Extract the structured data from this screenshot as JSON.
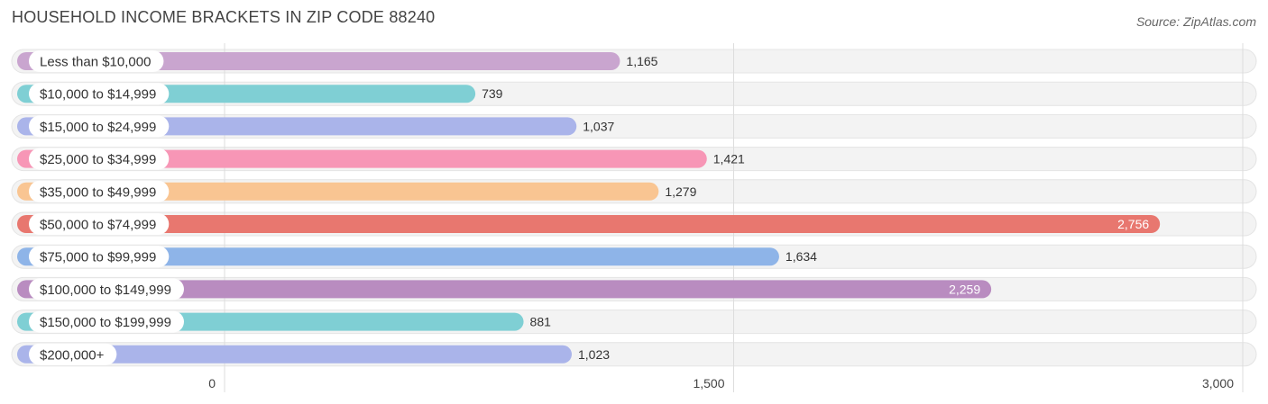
{
  "header": {
    "title": "HOUSEHOLD INCOME BRACKETS IN ZIP CODE 88240",
    "source": "Source: ZipAtlas.com"
  },
  "chart_data": {
    "type": "bar",
    "orientation": "horizontal",
    "title": "HOUSEHOLD INCOME BRACKETS IN ZIP CODE 88240",
    "xlabel": "",
    "ylabel": "",
    "xlim": [
      0,
      3000
    ],
    "ticks": [
      0,
      1500,
      3000
    ],
    "tick_labels": [
      "0",
      "1,500",
      "3,000"
    ],
    "grid": true,
    "categories": [
      "Less than $10,000",
      "$10,000 to $14,999",
      "$15,000 to $24,999",
      "$25,000 to $34,999",
      "$35,000 to $49,999",
      "$50,000 to $74,999",
      "$75,000 to $99,999",
      "$100,000 to $149,999",
      "$150,000 to $199,999",
      "$200,000+"
    ],
    "values": [
      1165,
      739,
      1037,
      1421,
      1279,
      2756,
      1634,
      2259,
      881,
      1023
    ],
    "value_labels": [
      "1,165",
      "739",
      "1,037",
      "1,421",
      "1,279",
      "2,756",
      "1,634",
      "2,259",
      "881",
      "1,023"
    ],
    "colors": [
      "#c9a5cf",
      "#7fcfd4",
      "#aab4ea",
      "#f796b6",
      "#f9c592",
      "#e8776f",
      "#8eb4e8",
      "#b98cc0",
      "#7fcfd4",
      "#aab4ea"
    ]
  }
}
